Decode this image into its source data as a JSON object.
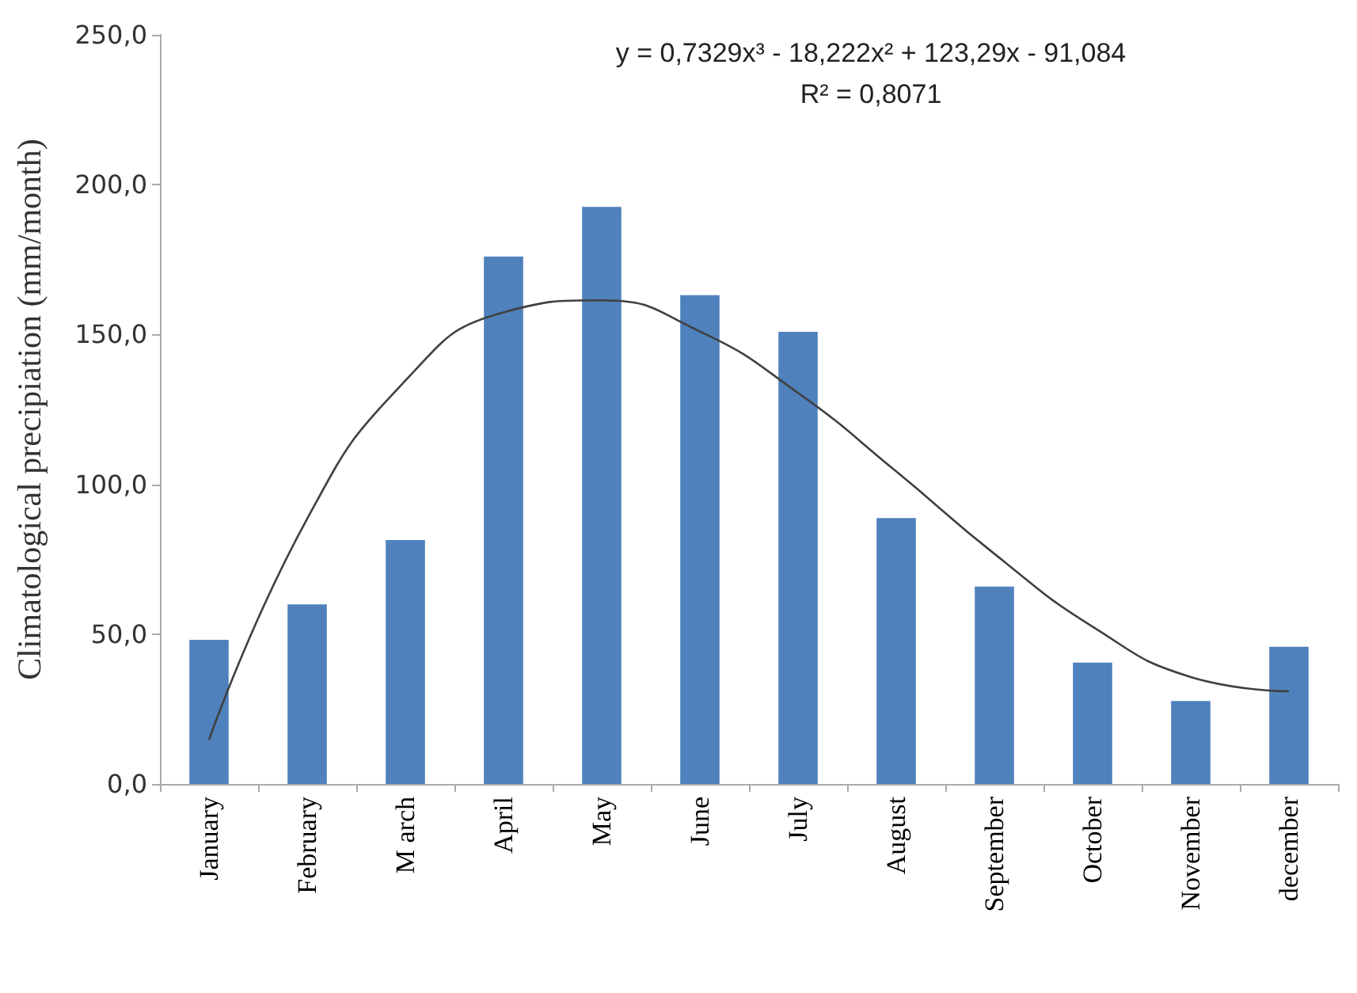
{
  "chart_data": {
    "type": "bar",
    "ylabel": "Climatological precipiation (mm/month)",
    "categories": [
      "January",
      "February",
      "M arch",
      "April",
      "May",
      "June",
      "July",
      "August",
      "September",
      "October",
      "November",
      "december"
    ],
    "series": [
      {
        "color": "#4f81bd",
        "values": [
          48.1,
          59.9,
          81.4,
          176.0,
          192.6,
          163.1,
          150.9,
          88.7,
          65.9,
          40.5,
          27.7,
          45.8
        ]
      },
      {
        "type": "line",
        "color": "#404040",
        "marker": "none",
        "line_style": "solid",
        "x": [
          "January",
          "February",
          "M arch",
          "April",
          "May",
          "June",
          "July",
          "August",
          "September",
          "October",
          "November",
          "december"
        ],
        "values": [
          14.7,
          88.5,
          134.6,
          157.4,
          161.4,
          151.0,
          130.5,
          104.3,
          76.8,
          52.5,
          35.7,
          30.9
        ]
      }
    ],
    "ylim": [
      0,
      250
    ],
    "yticks": [
      {
        "value": 0,
        "label": "0,0"
      },
      {
        "value": 50,
        "label": "50,0"
      },
      {
        "value": 100,
        "label": "100,0"
      },
      {
        "value": 150,
        "label": "150,0"
      },
      {
        "value": 200,
        "label": "200,0"
      },
      {
        "value": 250,
        "label": "250,0"
      }
    ],
    "grid": false,
    "annotations": [
      "y = 0,7329x³ - 18,222x² + 123,29x - 91,084",
      "R² = 0,8071"
    ]
  }
}
